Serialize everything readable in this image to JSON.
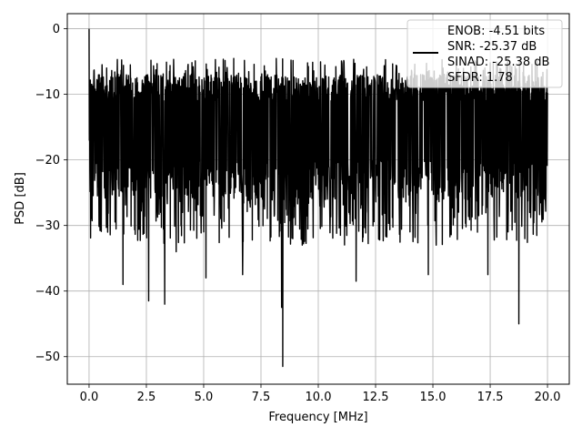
{
  "chart_data": {
    "type": "line",
    "title": "",
    "xlabel": "Frequency [MHz]",
    "ylabel": "PSD [dB]",
    "xlim": [
      -0.95,
      20.95
    ],
    "ylim": [
      -54.2,
      2.3
    ],
    "x_ticks": [
      0.0,
      2.5,
      5.0,
      7.5,
      10.0,
      12.5,
      15.0,
      17.5,
      20.0
    ],
    "x_tick_labels": [
      "0.0",
      "2.5",
      "5.0",
      "7.5",
      "10.0",
      "12.5",
      "15.0",
      "17.5",
      "20.0"
    ],
    "y_ticks": [
      0,
      -10,
      -20,
      -30,
      -40,
      -50
    ],
    "y_tick_labels": [
      "0",
      "−10",
      "−20",
      "−30",
      "−40",
      "−50"
    ],
    "grid": true,
    "legend_position": "top-right",
    "series": [
      {
        "color": "#000000",
        "x_range": [
          0,
          20
        ],
        "peak": {
          "x": 0.0,
          "y": 0.0
        },
        "noise_band": {
          "top": -7,
          "bottom": -26
        },
        "notable_dips": [
          {
            "x": 1.48,
            "y": -39
          },
          {
            "x": 2.6,
            "y": -41.5
          },
          {
            "x": 3.3,
            "y": -42
          },
          {
            "x": 3.8,
            "y": -34
          },
          {
            "x": 5.1,
            "y": -38
          },
          {
            "x": 6.7,
            "y": -37.5
          },
          {
            "x": 8.45,
            "y": -51.5
          },
          {
            "x": 8.4,
            "y": -42.5
          },
          {
            "x": 9.3,
            "y": -33
          },
          {
            "x": 11.65,
            "y": -38.5
          },
          {
            "x": 14.8,
            "y": -37.5
          },
          {
            "x": 17.4,
            "y": -37.5
          },
          {
            "x": 18.75,
            "y": -45
          }
        ]
      }
    ],
    "legend": {
      "entries": [
        "ENOB: -4.51 bits",
        "SNR: -25.37 dB",
        "SINAD: -25.38 dB",
        "SFDR: 1.78"
      ]
    }
  }
}
